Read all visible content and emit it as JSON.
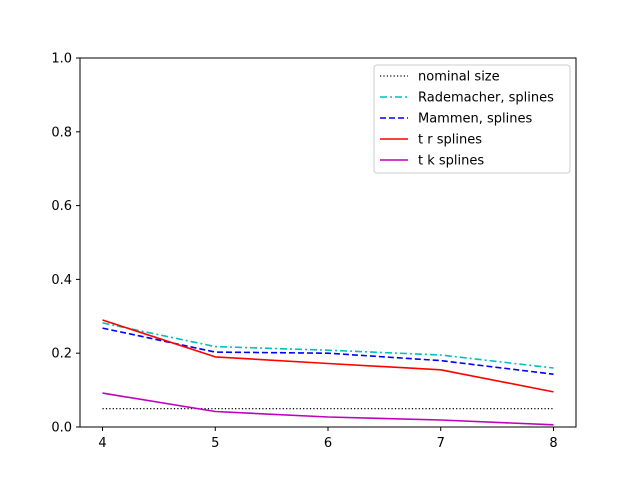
{
  "chart_data": {
    "type": "line",
    "title": "",
    "xlabel": "",
    "ylabel": "",
    "xlim": [
      3.8,
      8.2
    ],
    "ylim": [
      0.0,
      1.0
    ],
    "xticks": [
      "4",
      "5",
      "6",
      "7",
      "8"
    ],
    "yticks": [
      "0.0",
      "0.2",
      "0.4",
      "0.6",
      "0.8",
      "1.0"
    ],
    "grid": false,
    "legend_position": "top-right",
    "x": [
      4,
      5,
      6,
      7,
      8
    ],
    "series": [
      {
        "name": "nominal size",
        "values": [
          0.05,
          0.05,
          0.05,
          0.05,
          0.05
        ],
        "color": "#000000",
        "style": "dotted"
      },
      {
        "name": "Rademacher, splines",
        "values": [
          0.282,
          0.218,
          0.208,
          0.195,
          0.16
        ],
        "color": "#00bfbf",
        "style": "dashdot"
      },
      {
        "name": "Mammen, splines",
        "values": [
          0.268,
          0.203,
          0.2,
          0.18,
          0.143
        ],
        "color": "#0000ff",
        "style": "dashed"
      },
      {
        "name": "t r splines",
        "values": [
          0.29,
          0.19,
          0.172,
          0.155,
          0.095
        ],
        "color": "#ff0000",
        "style": "solid"
      },
      {
        "name": "t k splines",
        "values": [
          0.092,
          0.042,
          0.027,
          0.019,
          0.006
        ],
        "color": "#bf00bf",
        "style": "solid"
      }
    ]
  }
}
